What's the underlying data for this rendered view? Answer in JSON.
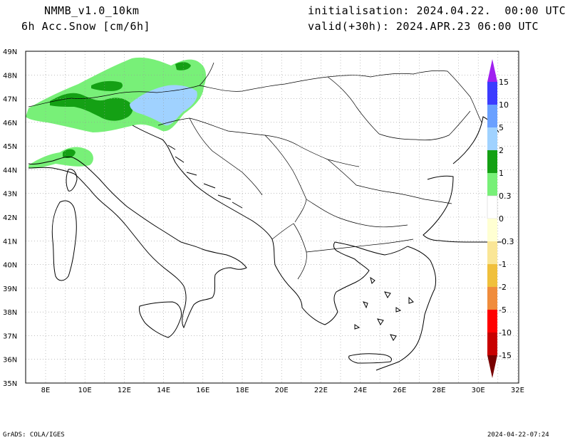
{
  "header": {
    "model": "NMMB_v1.0_10km",
    "field": "6h Acc.Snow [cm/6h]",
    "init": "initialisation: 2024.04.22.  00:00 UTC",
    "valid": "valid(+30h): 2024.APR.23 06:00 UTC"
  },
  "footer": {
    "left": "GrADS: COLA/IGES",
    "right": "2024-04-22-07:24"
  },
  "map": {
    "lon_ticks": [
      "8E",
      "10E",
      "12E",
      "14E",
      "16E",
      "18E",
      "20E",
      "22E",
      "24E",
      "26E",
      "28E",
      "30E",
      "32E"
    ],
    "lat_ticks": [
      "49N",
      "48N",
      "47N",
      "46N",
      "45N",
      "44N",
      "43N",
      "42N",
      "41N",
      "40N",
      "39N",
      "38N",
      "37N",
      "36N",
      "35N"
    ]
  },
  "colorbar": {
    "labels": [
      "15",
      "10",
      "5",
      "2",
      "1",
      "0.3",
      "0",
      "-0.3",
      "-1",
      "-2",
      "-5",
      "-10",
      "-15"
    ],
    "colors": [
      "#a020f0",
      "#3c3cff",
      "#6aa0ff",
      "#a0d2ff",
      "#14a014",
      "#78f078",
      "#ffffff",
      "#ffffd2",
      "#fae696",
      "#f0c03c",
      "#f08c3c",
      "#ff0000",
      "#c80000",
      "#780000"
    ]
  },
  "snow_colors": {
    "light": "#78f078",
    "medium": "#14a014",
    "blue": "#a0d2ff"
  }
}
